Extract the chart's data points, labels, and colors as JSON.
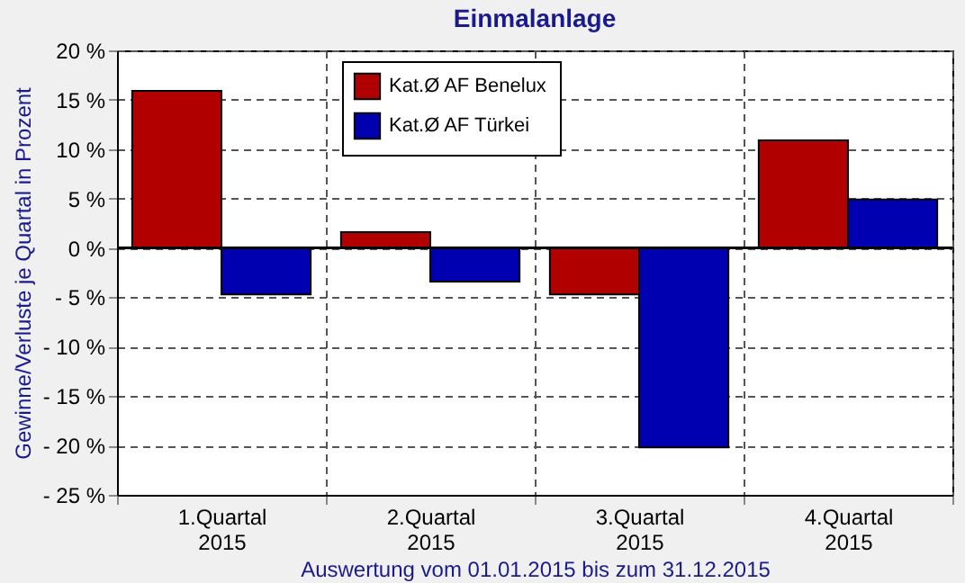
{
  "chart_data": {
    "type": "bar",
    "title": "Einmalanlage",
    "ylabel": "Gewinne/Verluste je Quartal in Prozent",
    "annotations": [
      "Auswertung vom 01.01.2015 bis zum 31.12.2015"
    ],
    "categories": [
      "1.Quartal\n2015",
      "2.Quartal\n2015",
      "3.Quartal\n2015",
      "4.Quartal\n2015"
    ],
    "series": [
      {
        "name": "Kat.Ø AF Benelux",
        "color": "#b00000",
        "values": [
          15.9,
          1.6,
          -4.7,
          10.9
        ]
      },
      {
        "name": "Kat.Ø AF Türkei",
        "color": "#0000b0",
        "values": [
          -4.7,
          -3.4,
          -20.2,
          4.9
        ]
      }
    ],
    "ylim": [
      -25,
      20
    ],
    "yticks": [
      {
        "value": -25,
        "label": "- 25 %"
      },
      {
        "value": -20,
        "label": "- 20 %"
      },
      {
        "value": -15,
        "label": "- 15 %"
      },
      {
        "value": -10,
        "label": "- 10 %"
      },
      {
        "value": -5,
        "label": "- 5 %"
      },
      {
        "value": 0,
        "label": "0 %"
      },
      {
        "value": 5,
        "label": "5 %"
      },
      {
        "value": 10,
        "label": "10 %"
      },
      {
        "value": 15,
        "label": "15 %"
      },
      {
        "value": 20,
        "label": "20 %"
      }
    ],
    "grid": true,
    "legend": "top"
  }
}
